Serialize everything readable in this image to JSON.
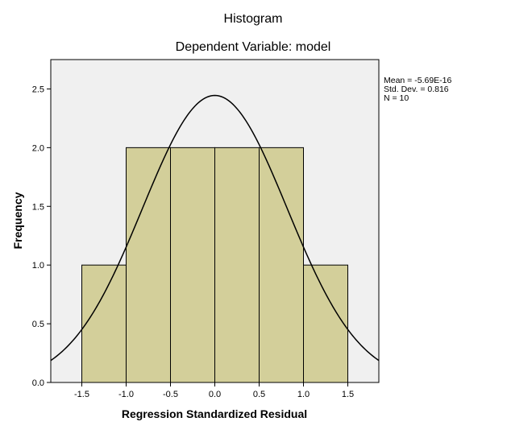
{
  "chart_data": {
    "type": "bar",
    "title": "Histogram",
    "subtitle": "Dependent Variable: model",
    "xlabel": "Regression Standardized Residual",
    "ylabel": "Frequency",
    "bin_edges": [
      -1.5,
      -1.0,
      -0.5,
      0.0,
      0.5,
      1.0,
      1.5
    ],
    "values": [
      1,
      2,
      2,
      2,
      2,
      1
    ],
    "xlim": [
      -1.85,
      1.85
    ],
    "ylim": [
      0,
      2.75
    ],
    "xticks": [
      "-1.5",
      "-1.0",
      "-0.5",
      "0.0",
      "0.5",
      "1.0",
      "1.5"
    ],
    "yticks": [
      "0.0",
      "0.5",
      "1.0",
      "1.5",
      "2.0",
      "2.5"
    ],
    "normal_curve": {
      "mean": -5.69e-16,
      "std": 0.816,
      "n": 10,
      "bin_width": 0.5
    },
    "stats_text": [
      "Mean = -5.69E-16",
      "Std. Dev. = 0.816",
      "N = 10"
    ],
    "grid": false,
    "colors": {
      "bar_fill": "#d3cf9a",
      "bar_stroke": "#000000",
      "plot_bg": "#f0f0f0",
      "curve": "#000000"
    }
  }
}
